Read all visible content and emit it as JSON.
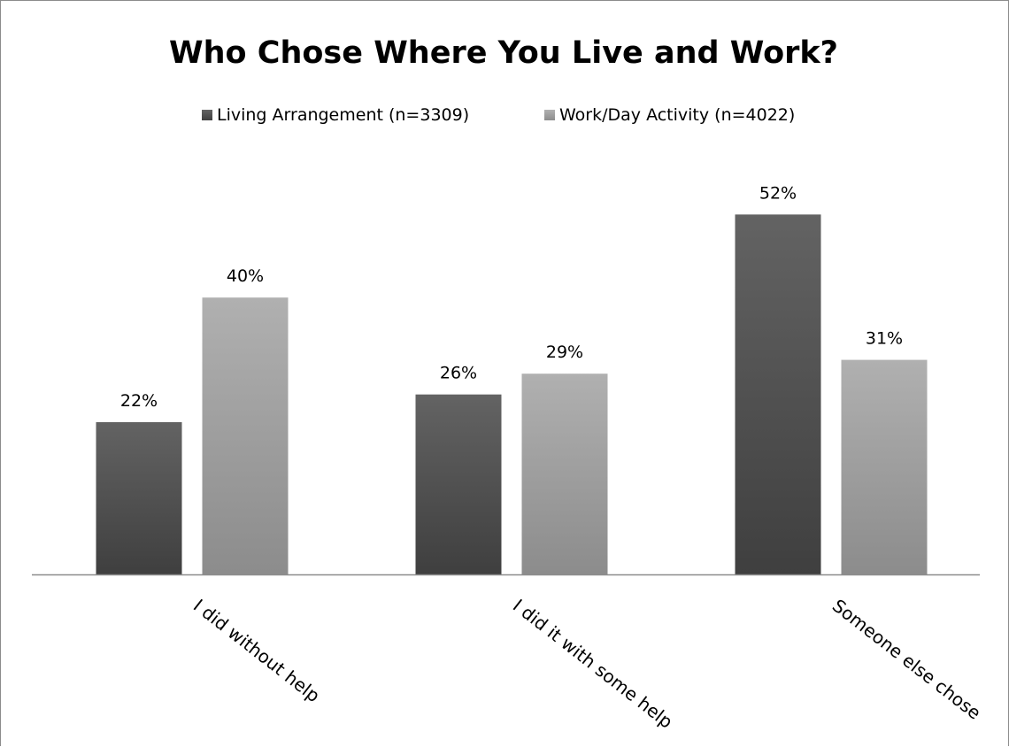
{
  "chart_data": {
    "type": "bar",
    "title": "Who Chose Where You Live and Work?",
    "categories": [
      "I did without help",
      "I did it with some help",
      "Someone else chose"
    ],
    "series": [
      {
        "name": "Living Arrangement (n=3309)",
        "values": [
          22,
          26,
          52
        ],
        "labels": [
          "22%",
          "26%",
          "52%"
        ],
        "color": "#555555"
      },
      {
        "name": "Work/Day Activity (n=4022)",
        "values": [
          40,
          29,
          31
        ],
        "labels": [
          "40%",
          "29%",
          "31%"
        ],
        "color": "#9f9f9f"
      }
    ],
    "value_unit": "%",
    "ylim": [
      0,
      60
    ],
    "legend_position": "top-center",
    "grid": false,
    "y_axis_visible": false,
    "xtick_rotation": "diagonal"
  }
}
